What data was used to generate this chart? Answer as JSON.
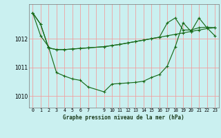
{
  "title": "Graphe pression niveau de la mer (hPa)",
  "bg_color": "#caf0f0",
  "grid_color": "#f0a0a0",
  "line_color": "#1a6b1a",
  "xlim": [
    -0.5,
    23.5
  ],
  "ylim": [
    1009.6,
    1013.2
  ],
  "yticks": [
    1010,
    1011,
    1012
  ],
  "xtick_labels": [
    "0",
    "1",
    "2",
    "3",
    "4",
    "5",
    "6",
    "7",
    "",
    "9",
    "10",
    "11",
    "12",
    "13",
    "14",
    "15",
    "16",
    "17",
    "18",
    "19",
    "20",
    "21",
    "22",
    "23"
  ],
  "line1_x": [
    0,
    1,
    2,
    3,
    4,
    5,
    6,
    7,
    9,
    10,
    11,
    12,
    13,
    14,
    15,
    16,
    17,
    18,
    19,
    20,
    21,
    22,
    23
  ],
  "line1_y": [
    1012.9,
    1012.5,
    1011.68,
    1011.62,
    1011.62,
    1011.64,
    1011.66,
    1011.68,
    1011.72,
    1011.76,
    1011.8,
    1011.85,
    1011.9,
    1011.95,
    1012.0,
    1012.05,
    1012.1,
    1012.15,
    1012.2,
    1012.25,
    1012.3,
    1012.35,
    1012.38
  ],
  "line2_x": [
    0,
    1,
    2,
    3,
    4,
    5,
    6,
    7,
    9,
    10,
    11,
    12,
    13,
    14,
    15,
    16,
    17,
    18,
    19,
    20,
    21,
    22,
    23
  ],
  "line2_y": [
    1012.9,
    1012.5,
    1011.68,
    1011.62,
    1011.62,
    1011.64,
    1011.66,
    1011.68,
    1011.72,
    1011.76,
    1011.8,
    1011.85,
    1011.9,
    1011.95,
    1012.0,
    1012.05,
    1012.55,
    1012.72,
    1012.3,
    1012.3,
    1012.38,
    1012.4,
    1012.38
  ],
  "line3_x": [
    0,
    1,
    2,
    3,
    4,
    5,
    6,
    7,
    9,
    10,
    11,
    12,
    13,
    14,
    15,
    16,
    17,
    18,
    19,
    20,
    21,
    22,
    23
  ],
  "line3_y": [
    1012.9,
    1012.1,
    1011.72,
    1010.82,
    1010.7,
    1010.6,
    1010.55,
    1010.32,
    1010.15,
    1010.42,
    1010.44,
    1010.46,
    1010.48,
    1010.52,
    1010.65,
    1010.75,
    1011.05,
    1011.72,
    1012.55,
    1012.25,
    1012.72,
    1012.38,
    1012.1
  ]
}
